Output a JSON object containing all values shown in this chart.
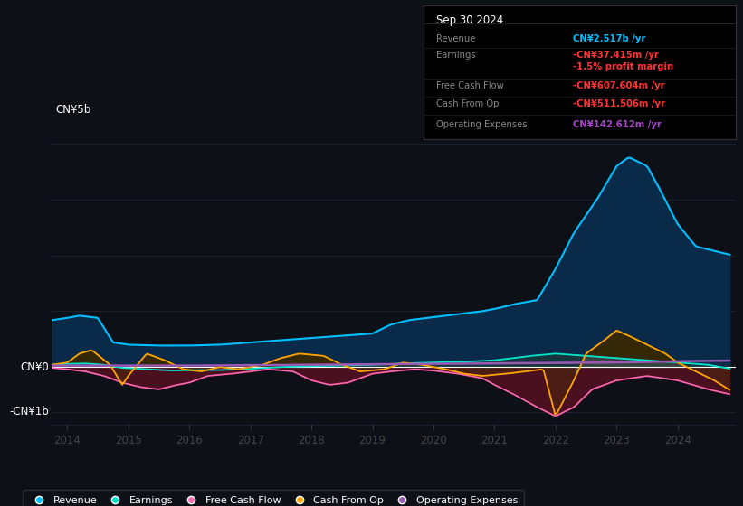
{
  "background_color": "#0d1117",
  "plot_bg_color": "#0d1117",
  "ylabel_top": "CN¥5b",
  "ylabel_bottom": "-CN¥1b",
  "ylabel_zero": "CN¥0",
  "x_years": [
    2014,
    2015,
    2016,
    2017,
    2018,
    2019,
    2020,
    2021,
    2022,
    2023,
    2024
  ],
  "series": {
    "revenue": {
      "color": "#00bfff",
      "fill_color": "#0a2a4a",
      "label": "Revenue"
    },
    "earnings": {
      "color": "#00e5cc",
      "fill_color": "#003f6b",
      "label": "Earnings"
    },
    "free_cash_flow": {
      "color": "#ff69b4",
      "fill_color": "#5c1a2a",
      "label": "Free Cash Flow"
    },
    "cash_from_op": {
      "color": "#ffa500",
      "fill_color": "#5c3a00",
      "label": "Cash From Op"
    },
    "operating_expenses": {
      "color": "#9b59b6",
      "fill_color": "#3d1a5c",
      "label": "Operating Expenses"
    }
  },
  "info_box": {
    "title": "Sep 30 2024",
    "rows": [
      {
        "label": "Revenue",
        "value": "CN¥2.517b /yr",
        "value_color": "#00bfff"
      },
      {
        "label": "Earnings",
        "value": "-CN¥37.415m /yr",
        "value_color": "#ff4444"
      },
      {
        "label": "",
        "value": "-1.5% profit margin",
        "value_color": "#ff4444"
      },
      {
        "label": "Free Cash Flow",
        "value": "-CN¥607.604m /yr",
        "value_color": "#ff4444"
      },
      {
        "label": "Cash From Op",
        "value": "-CN¥511.506m /yr",
        "value_color": "#ff4444"
      },
      {
        "label": "Operating Expenses",
        "value": "CN¥142.612m /yr",
        "value_color": "#9b59b6"
      }
    ]
  },
  "ylim_min": -1300000000,
  "ylim_max": 5500000000,
  "grid_color": "#1e2533"
}
